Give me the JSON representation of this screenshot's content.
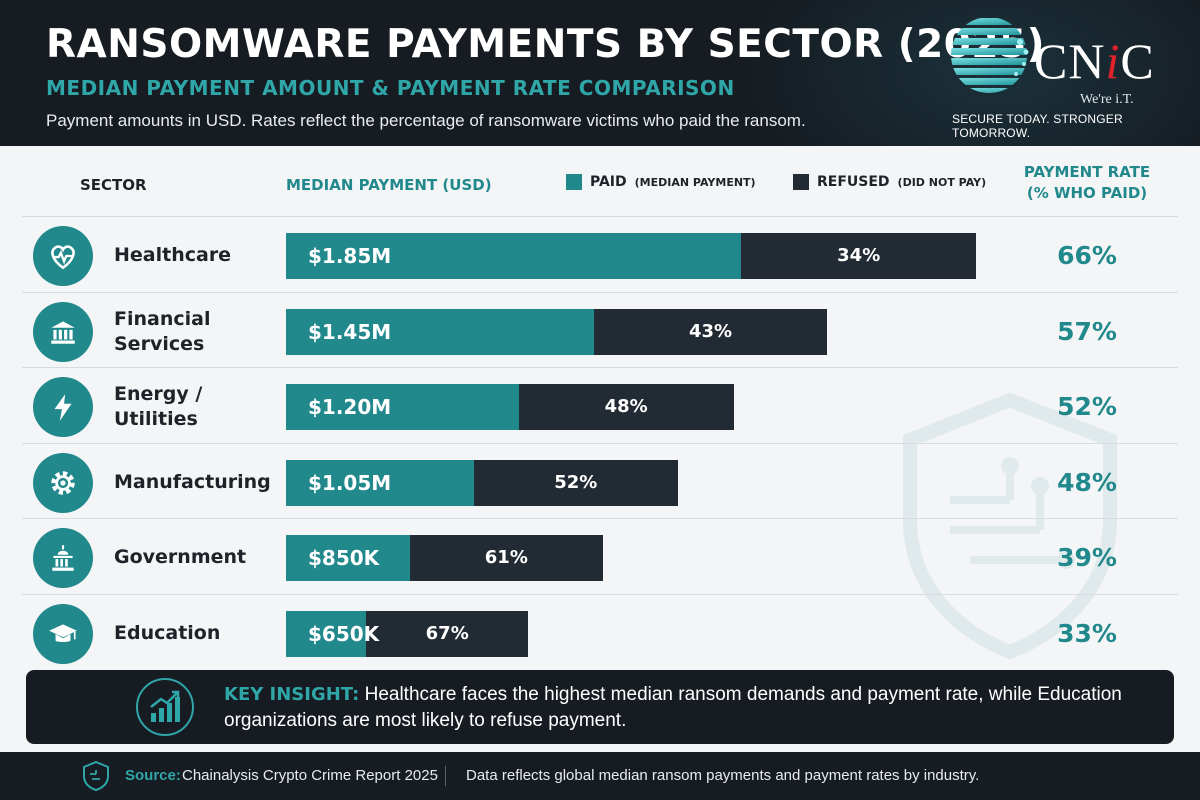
{
  "header": {
    "title": "RANSOMWARE PAYMENTS BY SECTOR (2025)",
    "subtitle": "MEDIAN PAYMENT AMOUNT & PAYMENT RATE COMPARISON",
    "note": "Payment amounts in USD. Rates reflect the percentage of ransomware victims who paid the ransom."
  },
  "logo": {
    "word_prefix": "CN",
    "word_i": "i",
    "word_suffix": "C",
    "tagline": "We're i.T.",
    "slogan": "SECURE TODAY. STRONGER TOMORROW."
  },
  "columns": {
    "sector": "SECTOR",
    "median": "MEDIAN PAYMENT (USD)",
    "rate_line1": "PAYMENT RATE",
    "rate_line2": "(% WHO PAID)"
  },
  "legend": {
    "paid": "PAID",
    "paid_note": "(MEDIAN PAYMENT)",
    "refused": "REFUSED",
    "refused_note": "(DID NOT PAY)"
  },
  "colors": {
    "paid": "#21888c",
    "refused": "#222a33",
    "accent": "#2fa6a8",
    "dark_bg": "#161c22"
  },
  "chart_data": {
    "type": "bar",
    "stacked": true,
    "orientation": "horizontal",
    "title": "RANSOMWARE PAYMENTS BY SECTOR (2025)",
    "subtitle": "MEDIAN PAYMENT AMOUNT & PAYMENT RATE COMPARISON",
    "categories": [
      "Healthcare",
      "Financial Services",
      "Energy / Utilities",
      "Manufacturing",
      "Government",
      "Education"
    ],
    "sector_icons": [
      "heart-pulse-icon",
      "bank-icon",
      "lightning-icon",
      "gear-icon",
      "capitol-icon",
      "graduation-cap-icon"
    ],
    "median_payment_labels": [
      "$1.85M",
      "$1.45M",
      "$1.20M",
      "$1.05M",
      "$850K",
      "$650K"
    ],
    "median_payment_usd": [
      1850000,
      1450000,
      1200000,
      1050000,
      850000,
      650000
    ],
    "paid_rate_labels": [
      "66%",
      "57%",
      "52%",
      "48%",
      "39%",
      "33%"
    ],
    "refused_rate_labels": [
      "34%",
      "43%",
      "48%",
      "52%",
      "61%",
      "67%"
    ],
    "series": [
      {
        "name": "PAID",
        "values": [
          66,
          57,
          52,
          48,
          39,
          33
        ]
      },
      {
        "name": "REFUSED",
        "values": [
          34,
          43,
          48,
          52,
          61,
          67
        ]
      }
    ]
  },
  "insight": {
    "label": "KEY INSIGHT:",
    "text": "Healthcare faces the highest median ransom demands and payment rate, while Education organizations are most likely to refuse payment."
  },
  "footer": {
    "source_label": "Source:",
    "source_value": "Chainalysis Crypto Crime Report 2025",
    "note": "Data reflects global median ransom payments and payment rates by industry."
  }
}
